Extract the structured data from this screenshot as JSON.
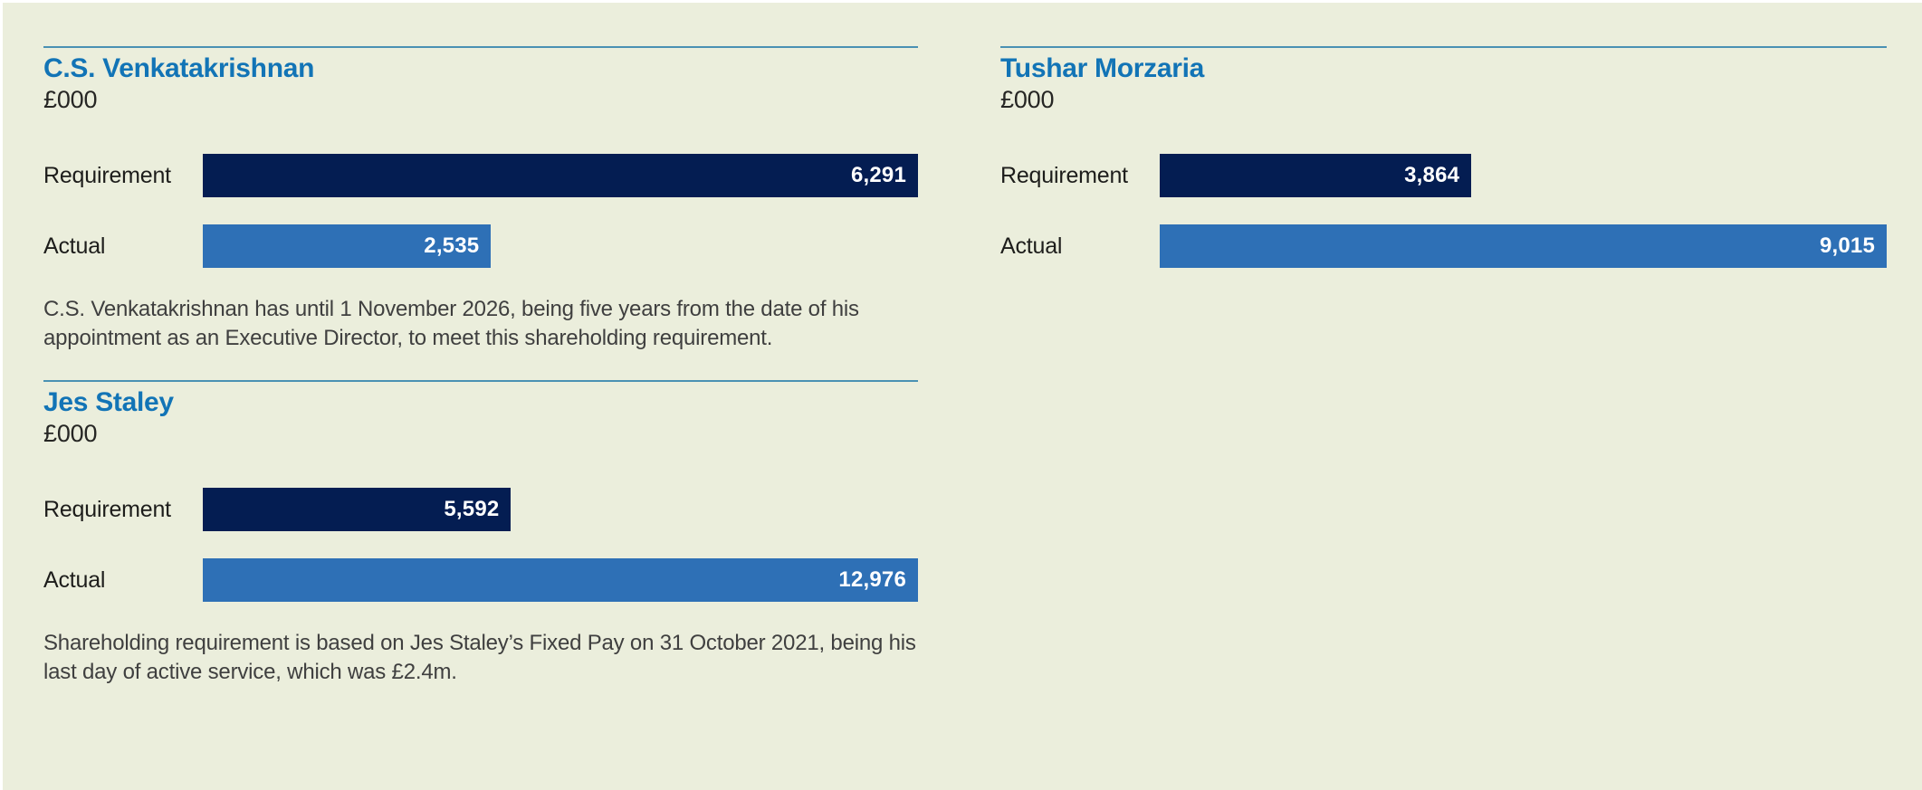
{
  "page": {
    "background_color": "#ebeedc",
    "rule_color": "#4a91b3",
    "title_color": "#1274b6",
    "text_color": "#1d1d1b",
    "footnote_color": "#3f3f3f",
    "bar_value_color": "#ffffff",
    "navy_bar_color": "#041d52",
    "blue_bar_color": "#2e70b6"
  },
  "chart_data": [
    {
      "type": "bar",
      "orientation": "horizontal",
      "title": "C.S. Venkatakrishnan",
      "unit_label": "£000",
      "categories": [
        "Requirement",
        "Actual"
      ],
      "values": [
        6291,
        2535
      ],
      "value_labels": [
        "6,291",
        "2,535"
      ],
      "bar_colors": [
        "#041d52",
        "#2e70b6"
      ],
      "xlim": [
        0,
        6291
      ],
      "grid": false,
      "legend": false,
      "footnote": "C.S. Venkatakrishnan has until 1 November 2026, being five years from the date of his appointment as an Executive Director, to meet this shareholding requirement."
    },
    {
      "type": "bar",
      "orientation": "horizontal",
      "title": "Tushar Morzaria",
      "unit_label": "£000",
      "categories": [
        "Requirement",
        "Actual"
      ],
      "values": [
        3864,
        9015
      ],
      "value_labels": [
        "3,864",
        "9,015"
      ],
      "bar_colors": [
        "#041d52",
        "#2e70b6"
      ],
      "xlim": [
        0,
        9015
      ],
      "grid": false,
      "legend": false
    },
    {
      "type": "bar",
      "orientation": "horizontal",
      "title": "Jes Staley",
      "unit_label": "£000",
      "categories": [
        "Requirement",
        "Actual"
      ],
      "values": [
        5592,
        12976
      ],
      "value_labels": [
        "5,592",
        "12,976"
      ],
      "bar_colors": [
        "#041d52",
        "#2e70b6"
      ],
      "xlim": [
        0,
        12976
      ],
      "grid": false,
      "legend": false,
      "footnote": "Shareholding requirement is based on Jes Staley’s Fixed Pay on 31 October 2021, being his last day of active service, which was £2.4m."
    }
  ]
}
